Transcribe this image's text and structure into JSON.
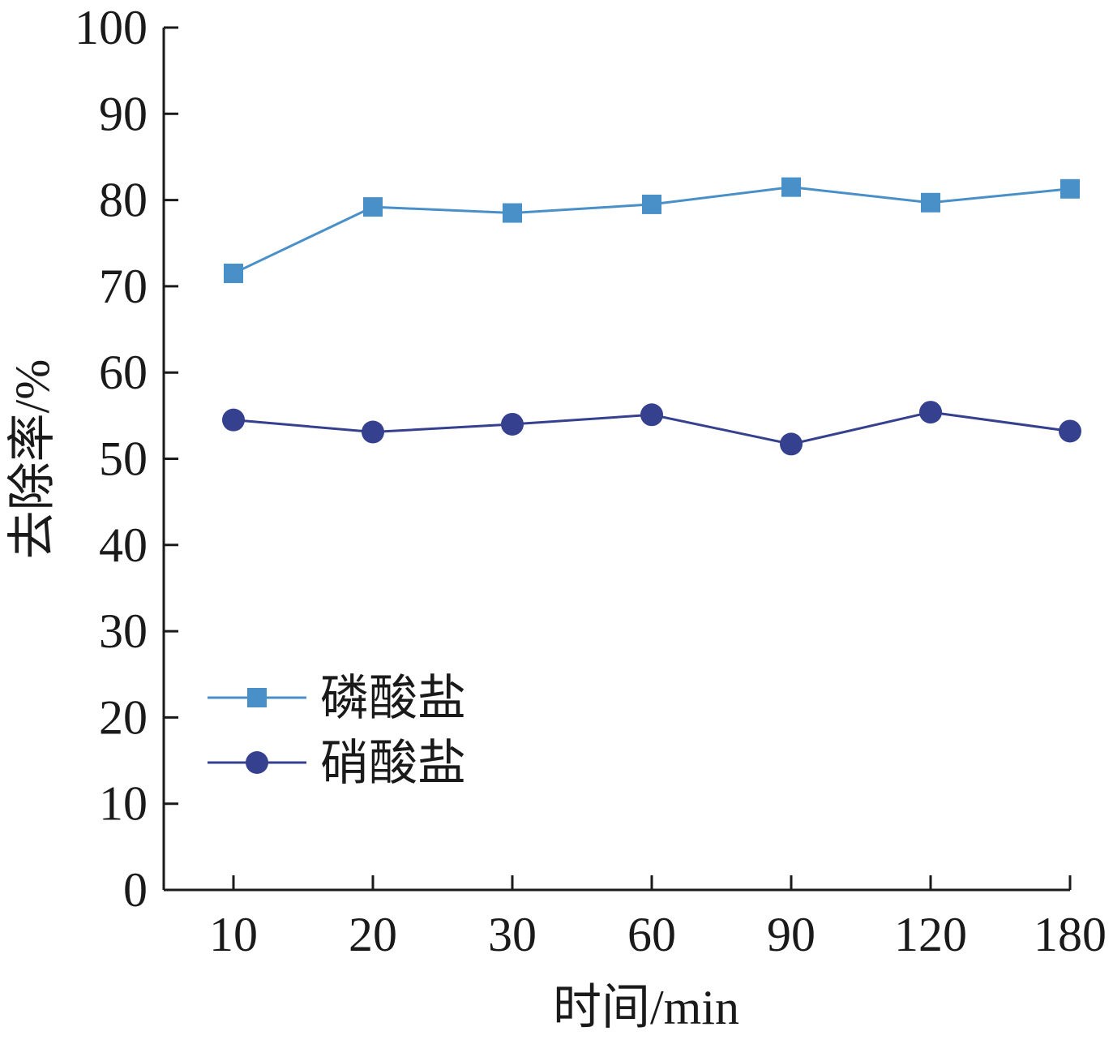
{
  "chart_data": {
    "type": "line",
    "categories": [
      "10",
      "20",
      "30",
      "60",
      "90",
      "120",
      "180"
    ],
    "xlabel": "时间/min",
    "ylabel": "去除率/%",
    "ylim": [
      0,
      100
    ],
    "yticks": [
      "0",
      "10",
      "20",
      "30",
      "40",
      "50",
      "60",
      "70",
      "80",
      "90",
      "100"
    ],
    "grid": false,
    "legend_position": "lower-left",
    "series": [
      {
        "name": "磷酸盐",
        "marker": "square",
        "color": "#4a90c8",
        "values": [
          71.5,
          79.2,
          78.5,
          79.5,
          81.5,
          79.7,
          81.3
        ]
      },
      {
        "name": "硝酸盐",
        "marker": "circle",
        "color": "#35408f",
        "values": [
          54.5,
          53.1,
          54.0,
          55.1,
          51.7,
          55.4,
          53.2
        ]
      }
    ]
  }
}
